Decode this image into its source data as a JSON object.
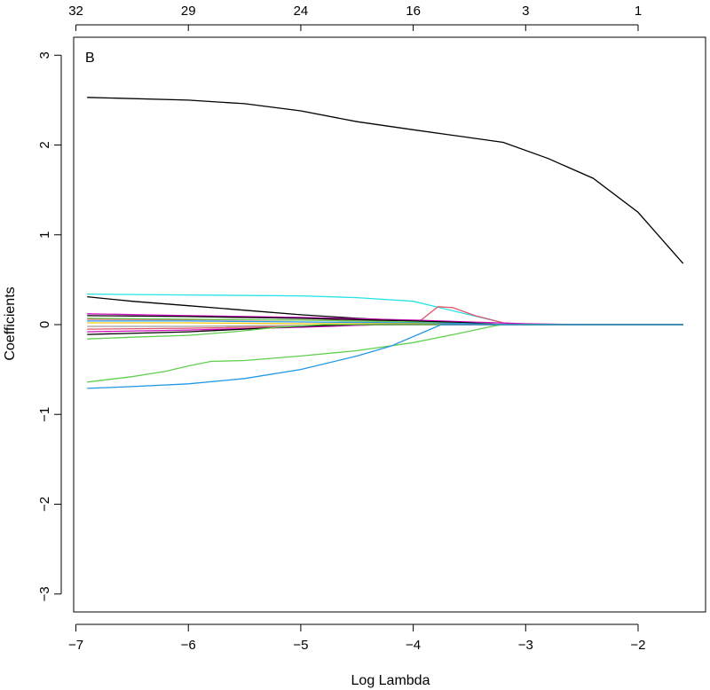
{
  "chart_data": {
    "type": "line",
    "panel_label": "B",
    "xlabel": "Log Lambda",
    "ylabel": "Coefficients",
    "xlim": [
      -7.02,
      -1.4
    ],
    "ylim": [
      -3.2,
      3.2
    ],
    "x_ticks": [
      -7,
      -6,
      -5,
      -4,
      -3,
      -2
    ],
    "x_tick_labels": [
      "−7",
      "−6",
      "−5",
      "−4",
      "−3",
      "−2"
    ],
    "y_ticks": [
      -3,
      -2,
      -1,
      0,
      1,
      2,
      3
    ],
    "y_tick_labels": [
      "−3",
      "−2",
      "−1",
      "0",
      "1",
      "2",
      "3"
    ],
    "top_axis": {
      "positions": [
        -7,
        -6,
        -5,
        -4,
        -3,
        -2
      ],
      "labels": [
        "32",
        "29",
        "24",
        "16",
        "3",
        "1"
      ]
    },
    "grid": false,
    "legend": "none",
    "series": [
      {
        "color": "#000000",
        "points": [
          [
            -6.9,
            2.53
          ],
          [
            -6.0,
            2.5
          ],
          [
            -5.5,
            2.46
          ],
          [
            -5.0,
            2.38
          ],
          [
            -4.5,
            2.26
          ],
          [
            -4.0,
            2.17
          ],
          [
            -3.6,
            2.1
          ],
          [
            -3.2,
            2.03
          ],
          [
            -2.8,
            1.85
          ],
          [
            -2.4,
            1.63
          ],
          [
            -2.0,
            1.25
          ],
          [
            -1.6,
            0.68
          ]
        ]
      },
      {
        "color": "#28e2e5",
        "points": [
          [
            -6.9,
            0.34
          ],
          [
            -6.0,
            0.33
          ],
          [
            -5.0,
            0.32
          ],
          [
            -4.5,
            0.3
          ],
          [
            -4.0,
            0.26
          ],
          [
            -3.8,
            0.2
          ],
          [
            -3.5,
            0.11
          ],
          [
            -3.2,
            0.02
          ],
          [
            -3.0,
            0.0
          ],
          [
            -1.6,
            0.0
          ]
        ]
      },
      {
        "color": "#000000",
        "points": [
          [
            -6.9,
            0.31
          ],
          [
            -6.5,
            0.26
          ],
          [
            -6.0,
            0.21
          ],
          [
            -5.5,
            0.16
          ],
          [
            -5.0,
            0.11
          ],
          [
            -4.5,
            0.07
          ],
          [
            -4.0,
            0.04
          ],
          [
            -3.75,
            0.02
          ],
          [
            -3.4,
            0.0
          ],
          [
            -1.6,
            0.0
          ]
        ]
      },
      {
        "color": "#df536b",
        "points": [
          [
            -6.9,
            0.06
          ],
          [
            -5.0,
            0.05
          ],
          [
            -4.2,
            0.04
          ],
          [
            -3.93,
            0.05
          ],
          [
            -3.78,
            0.2
          ],
          [
            -3.65,
            0.19
          ],
          [
            -3.45,
            0.1
          ],
          [
            -3.2,
            0.02
          ],
          [
            -3.0,
            0.0
          ],
          [
            -1.6,
            0.0
          ]
        ]
      },
      {
        "color": "#cd0bbc",
        "points": [
          [
            -6.9,
            0.12
          ],
          [
            -6.0,
            0.1
          ],
          [
            -5.0,
            0.08
          ],
          [
            -4.0,
            0.05
          ],
          [
            -3.5,
            0.03
          ],
          [
            -3.0,
            0.01
          ],
          [
            -2.5,
            0.0
          ],
          [
            -1.6,
            0.0
          ]
        ]
      },
      {
        "color": "#000000",
        "points": [
          [
            -6.9,
            0.1
          ],
          [
            -6.0,
            0.09
          ],
          [
            -5.0,
            0.07
          ],
          [
            -4.0,
            0.04
          ],
          [
            -3.5,
            0.02
          ],
          [
            -3.2,
            0.0
          ],
          [
            -1.6,
            0.0
          ]
        ]
      },
      {
        "color": "#61d04f",
        "points": [
          [
            -6.9,
            0.07
          ],
          [
            -6.0,
            0.06
          ],
          [
            -5.0,
            0.05
          ],
          [
            -4.0,
            0.03
          ],
          [
            -3.5,
            0.01
          ],
          [
            -3.2,
            0.0
          ],
          [
            -1.6,
            0.0
          ]
        ]
      },
      {
        "color": "#2297e6",
        "points": [
          [
            -6.9,
            0.04
          ],
          [
            -6.0,
            0.04
          ],
          [
            -5.0,
            0.03
          ],
          [
            -4.0,
            0.02
          ],
          [
            -3.5,
            0.01
          ],
          [
            -3.2,
            0.0
          ],
          [
            -1.6,
            0.0
          ]
        ]
      },
      {
        "color": "#f5c710",
        "points": [
          [
            -6.9,
            0.02
          ],
          [
            -6.0,
            0.02
          ],
          [
            -5.0,
            0.01
          ],
          [
            -4.0,
            0.01
          ],
          [
            -3.5,
            0.0
          ],
          [
            -1.6,
            0.0
          ]
        ]
      },
      {
        "color": "#9e9e9e",
        "points": [
          [
            -6.9,
            -0.02
          ],
          [
            -6.0,
            -0.02
          ],
          [
            -5.0,
            -0.01
          ],
          [
            -4.0,
            0.0
          ],
          [
            -1.6,
            0.0
          ]
        ]
      },
      {
        "color": "#df536b",
        "points": [
          [
            -6.9,
            -0.05
          ],
          [
            -6.0,
            -0.04
          ],
          [
            -5.0,
            -0.02
          ],
          [
            -4.2,
            0.0
          ],
          [
            -1.6,
            0.0
          ]
        ]
      },
      {
        "color": "#cd0bbc",
        "points": [
          [
            -6.9,
            -0.08
          ],
          [
            -6.0,
            -0.06
          ],
          [
            -5.0,
            -0.03
          ],
          [
            -4.3,
            0.0
          ],
          [
            -1.6,
            0.0
          ]
        ]
      },
      {
        "color": "#000000",
        "points": [
          [
            -6.9,
            -0.11
          ],
          [
            -6.0,
            -0.08
          ],
          [
            -5.5,
            -0.05
          ],
          [
            -5.0,
            -0.02
          ],
          [
            -4.5,
            0.0
          ],
          [
            -1.6,
            0.0
          ]
        ]
      },
      {
        "color": "#61d04f",
        "points": [
          [
            -6.9,
            -0.16
          ],
          [
            -6.5,
            -0.14
          ],
          [
            -6.0,
            -0.12
          ],
          [
            -5.6,
            -0.08
          ],
          [
            -5.2,
            -0.03
          ],
          [
            -4.8,
            0.0
          ],
          [
            -1.6,
            0.0
          ]
        ]
      },
      {
        "color": "#61d04f",
        "points": [
          [
            -6.9,
            -0.64
          ],
          [
            -6.5,
            -0.58
          ],
          [
            -6.2,
            -0.52
          ],
          [
            -6.0,
            -0.46
          ],
          [
            -5.8,
            -0.41
          ],
          [
            -5.5,
            -0.4
          ],
          [
            -5.0,
            -0.35
          ],
          [
            -4.5,
            -0.29
          ],
          [
            -4.0,
            -0.2
          ],
          [
            -3.6,
            -0.1
          ],
          [
            -3.3,
            -0.02
          ],
          [
            -3.2,
            0.0
          ],
          [
            -1.6,
            0.0
          ]
        ]
      },
      {
        "color": "#2297e6",
        "points": [
          [
            -6.9,
            -0.71
          ],
          [
            -6.5,
            -0.69
          ],
          [
            -6.0,
            -0.66
          ],
          [
            -5.5,
            -0.6
          ],
          [
            -5.0,
            -0.5
          ],
          [
            -4.5,
            -0.35
          ],
          [
            -4.2,
            -0.24
          ],
          [
            -3.9,
            -0.08
          ],
          [
            -3.75,
            0.0
          ],
          [
            -1.6,
            0.0
          ]
        ]
      }
    ]
  }
}
